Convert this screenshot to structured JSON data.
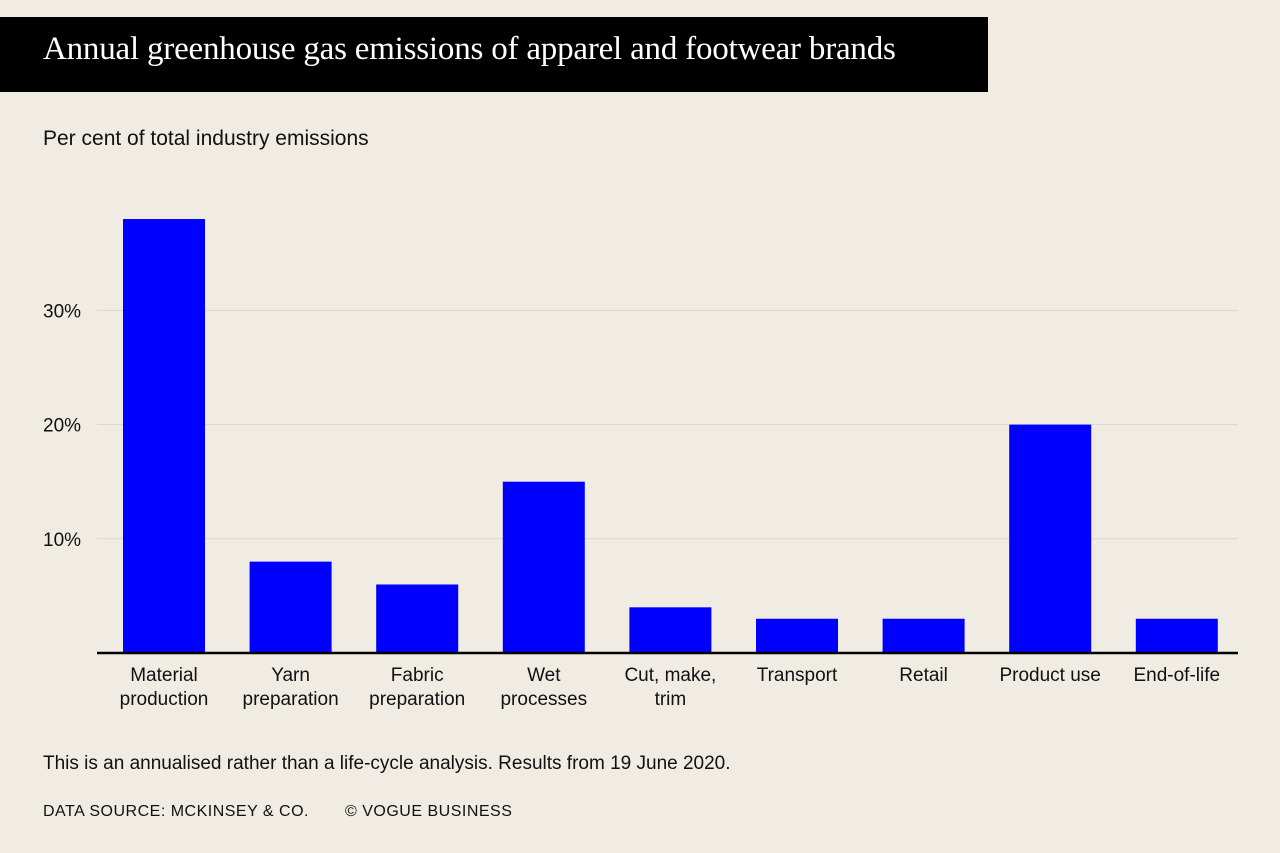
{
  "title": "Annual greenhouse gas emissions of apparel and footwear brands",
  "subtitle": "Per cent of total industry emissions",
  "note": "This is an annualised rather than a life-cycle analysis. Results from 19 June 2020.",
  "source": "DATA SOURCE: MCKINSEY & CO.",
  "credit": "© VOGUE BUSINESS",
  "colors": {
    "bar": "#0000ff",
    "background": "#f0ece4",
    "grid": "#dcd8d0",
    "axis": "#000000"
  },
  "chart_data": {
    "type": "bar",
    "categories": [
      [
        "Material",
        "production"
      ],
      [
        "Yarn",
        "preparation"
      ],
      [
        "Fabric",
        "preparation"
      ],
      [
        "Wet",
        "processes"
      ],
      [
        "Cut, make,",
        "trim"
      ],
      [
        "Transport"
      ],
      [
        "Retail"
      ],
      [
        "Product use"
      ],
      [
        "End-of-life"
      ]
    ],
    "values": [
      38,
      8,
      6,
      15,
      4,
      3,
      3,
      20,
      3
    ],
    "ylim": [
      0,
      40
    ],
    "yticks": [
      10,
      20,
      30
    ],
    "ytick_labels": [
      "10%",
      "20%",
      "30%"
    ],
    "grid": true
  }
}
